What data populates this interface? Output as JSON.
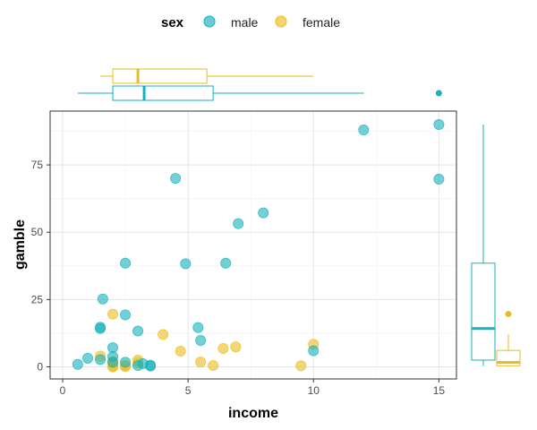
{
  "legend": {
    "title": "sex",
    "items": [
      {
        "label": "male",
        "color": "#16B1BC"
      },
      {
        "label": "female",
        "color": "#E9BD1E"
      }
    ]
  },
  "chart_data": [
    {
      "type": "scatter",
      "xlabel": "income",
      "ylabel": "gamble",
      "xlim": [
        -0.5,
        15.7
      ],
      "ylim": [
        -4.5,
        95
      ],
      "x_ticks": [
        0,
        5,
        10,
        15
      ],
      "y_ticks": [
        0,
        25,
        50,
        75
      ],
      "grid": true,
      "legend_position": "top",
      "series": [
        {
          "name": "male",
          "color": "#16B1BC",
          "points": [
            [
              0.6,
              0.9
            ],
            [
              1.0,
              3.2
            ],
            [
              1.5,
              2.7
            ],
            [
              1.5,
              14.2
            ],
            [
              1.5,
              14.7
            ],
            [
              1.6,
              25.2
            ],
            [
              2.0,
              1.7
            ],
            [
              2.0,
              3.8
            ],
            [
              2.0,
              7.1
            ],
            [
              2.5,
              1.7
            ],
            [
              2.5,
              19.3
            ],
            [
              2.5,
              38.5
            ],
            [
              3.0,
              0.5
            ],
            [
              3.0,
              13.3
            ],
            [
              3.2,
              1.2
            ],
            [
              3.5,
              0.3
            ],
            [
              3.5,
              0.6
            ],
            [
              4.5,
              70.0
            ],
            [
              4.9,
              38.3
            ],
            [
              5.4,
              14.6
            ],
            [
              5.5,
              9.8
            ],
            [
              6.5,
              38.5
            ],
            [
              7.0,
              53.2
            ],
            [
              8.0,
              57.2
            ],
            [
              10.0,
              6.0
            ],
            [
              12.0,
              88.0
            ],
            [
              15.0,
              69.7
            ],
            [
              15.0,
              90.0
            ]
          ]
        },
        {
          "name": "female",
          "color": "#E9BD1E",
          "points": [
            [
              1.5,
              4.0
            ],
            [
              2.0,
              0.0
            ],
            [
              2.0,
              0.2
            ],
            [
              2.0,
              1.5
            ],
            [
              2.0,
              2.0
            ],
            [
              2.0,
              19.6
            ],
            [
              2.5,
              0.1
            ],
            [
              2.5,
              0.5
            ],
            [
              3.0,
              1.5
            ],
            [
              3.0,
              2.5
            ],
            [
              4.0,
              12.0
            ],
            [
              4.7,
              5.8
            ],
            [
              5.5,
              1.8
            ],
            [
              6.0,
              0.5
            ],
            [
              6.4,
              6.8
            ],
            [
              6.9,
              7.4
            ],
            [
              9.5,
              0.4
            ],
            [
              10.0,
              8.4
            ]
          ]
        }
      ]
    },
    {
      "type": "boxplot",
      "orientation": "horizontal",
      "axis": "income",
      "series": [
        {
          "name": "male",
          "color": "#16B1BC",
          "min": 0.6,
          "q1": 2.0,
          "median": 3.25,
          "q3": 6.0,
          "max": 12.0,
          "outliers": [
            15.0
          ]
        },
        {
          "name": "female",
          "color": "#E9BD1E",
          "min": 1.5,
          "q1": 2.0,
          "median": 3.0,
          "q3": 5.75,
          "max": 10.0,
          "outliers": []
        }
      ]
    },
    {
      "type": "boxplot",
      "orientation": "vertical",
      "axis": "gamble",
      "series": [
        {
          "name": "male",
          "color": "#16B1BC",
          "min": 0.3,
          "q1": 2.5,
          "median": 14.2,
          "q3": 38.5,
          "max": 90.0,
          "outliers": []
        },
        {
          "name": "female",
          "color": "#E9BD1E",
          "min": 0.0,
          "q1": 0.4,
          "median": 1.65,
          "q3": 6.1,
          "max": 12.0,
          "outliers": [
            19.6
          ]
        }
      ]
    }
  ]
}
